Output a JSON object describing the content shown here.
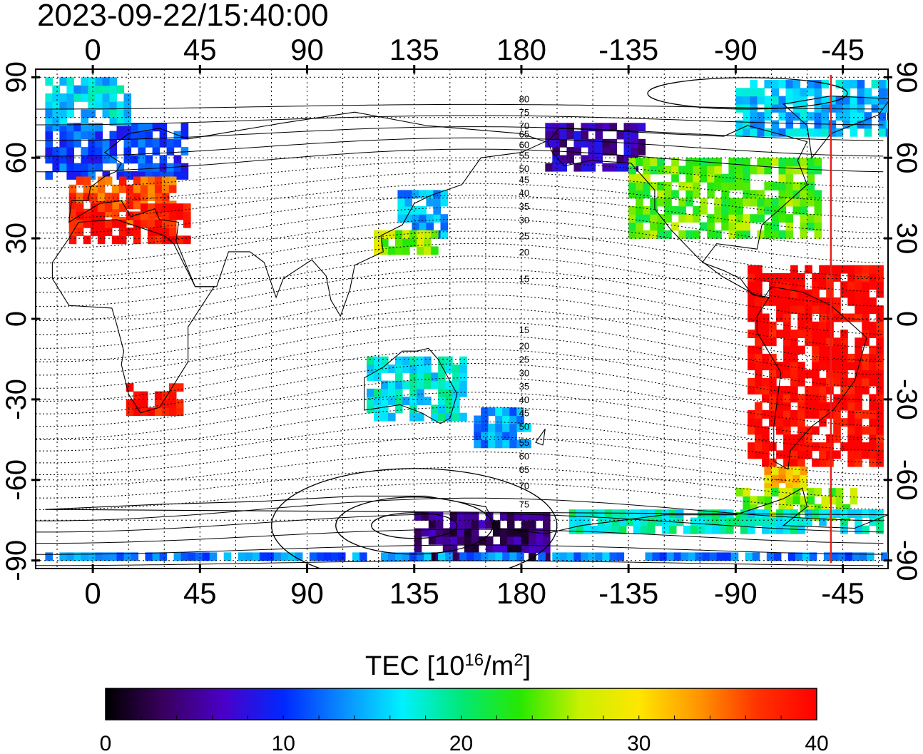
{
  "timestamp": "2023-09-22/15:40:00",
  "map": {
    "lon_tick_labels": [
      "0",
      "45",
      "90",
      "135",
      "180",
      "-135",
      "-90",
      "-45"
    ],
    "lon_tick_values": [
      0,
      45,
      90,
      135,
      180,
      225,
      270,
      315
    ],
    "lat_tick_labels": [
      "90",
      "60",
      "30",
      "0",
      "-30",
      "-60",
      "-90"
    ],
    "lat_tick_values": [
      90,
      60,
      30,
      0,
      -30,
      -60,
      -90
    ],
    "lon_range": [
      -24,
      334
    ],
    "lat_range": [
      -93,
      93
    ],
    "terminator_lon": 310,
    "terminator_color": "#e8201c",
    "magnetic_latitude_labels": [
      "80",
      "75",
      "70",
      "65",
      "60",
      "55",
      "50",
      "45",
      "40",
      "35",
      "30",
      "25",
      "20",
      "15",
      "15",
      "20",
      "25",
      "30",
      "35",
      "40",
      "45",
      "50",
      "55",
      "60",
      "65",
      "70",
      "75"
    ],
    "magnetic_latitude_label_lats": [
      82,
      77,
      72,
      69,
      65,
      61,
      56,
      52,
      47,
      42,
      37,
      31,
      25,
      15,
      -4,
      -10,
      -15,
      -20,
      -25,
      -30,
      -35,
      -40,
      -46,
      -51,
      -56,
      -62,
      -69
    ],
    "regions": [
      {
        "name": "europe-north",
        "lon": [
          -20,
          40
        ],
        "lat": [
          52,
          72
        ],
        "tec": 11
      },
      {
        "name": "europe-south",
        "lon": [
          -10,
          35
        ],
        "lat": [
          35,
          52
        ],
        "tec": 36
      },
      {
        "name": "greenland-arctic",
        "lon": [
          -20,
          15
        ],
        "lat": [
          72,
          90
        ],
        "tec": 16
      },
      {
        "name": "mediterranean",
        "lon": [
          -10,
          40
        ],
        "lat": [
          28,
          42
        ],
        "tec": 39
      },
      {
        "name": "south-africa",
        "lon": [
          14,
          38
        ],
        "lat": [
          -36,
          -24
        ],
        "tec": 39
      },
      {
        "name": "japan",
        "lon": [
          128,
          148
        ],
        "lat": [
          30,
          46
        ],
        "tec": 14
      },
      {
        "name": "east-asia",
        "lon": [
          118,
          145
        ],
        "lat": [
          24,
          32
        ],
        "tec": 26
      },
      {
        "name": "alaska",
        "lon": [
          190,
          230
        ],
        "lat": [
          55,
          72
        ],
        "tec": 6
      },
      {
        "name": "north-america",
        "lon": [
          225,
          305
        ],
        "lat": [
          30,
          60
        ],
        "tec": 24
      },
      {
        "name": "canada-north",
        "lon": [
          270,
          335
        ],
        "lat": [
          68,
          88
        ],
        "tec": 15
      },
      {
        "name": "south-america",
        "lon": [
          275,
          330
        ],
        "lat": [
          -55,
          20
        ],
        "tec": 40
      },
      {
        "name": "patagonia",
        "lon": [
          282,
          300
        ],
        "lat": [
          -64,
          -55
        ],
        "tec": 31
      },
      {
        "name": "new-zealand",
        "lon": [
          160,
          182
        ],
        "lat": [
          -48,
          -34
        ],
        "tec": 14
      },
      {
        "name": "australia",
        "lon": [
          115,
          155
        ],
        "lat": [
          -38,
          -16
        ],
        "tec": 17
      },
      {
        "name": "antarctica-ross",
        "lon": [
          135,
          190
        ],
        "lat": [
          -90,
          -72
        ],
        "tec": 4
      },
      {
        "name": "antarctic-peninsula",
        "lon": [
          270,
          320
        ],
        "lat": [
          -75,
          -65
        ],
        "tec": 25
      },
      {
        "name": "antarctica-edge",
        "lon": [
          -20,
          334
        ],
        "lat": [
          -90,
          -87
        ],
        "tec": 13
      },
      {
        "name": "antarctica-coast",
        "lon": [
          200,
          330
        ],
        "lat": [
          -80,
          -72
        ],
        "tec": 18
      }
    ]
  },
  "colorbar": {
    "title_main": "TEC  [10",
    "title_sup": "16",
    "title_mid": "/m",
    "title_sup2": "2",
    "title_end": "]",
    "min": 0,
    "max": 40,
    "tick_labels": [
      "0",
      "10",
      "20",
      "30",
      "40"
    ],
    "tick_values": [
      0,
      10,
      20,
      30,
      40
    ],
    "colors": [
      "#000000",
      "#3a0060",
      "#4a00c8",
      "#0028ff",
      "#0a8cff",
      "#00f0ff",
      "#00e878",
      "#28e800",
      "#c8f000",
      "#ffe600",
      "#ff9600",
      "#ff3200",
      "#ff0000"
    ]
  }
}
